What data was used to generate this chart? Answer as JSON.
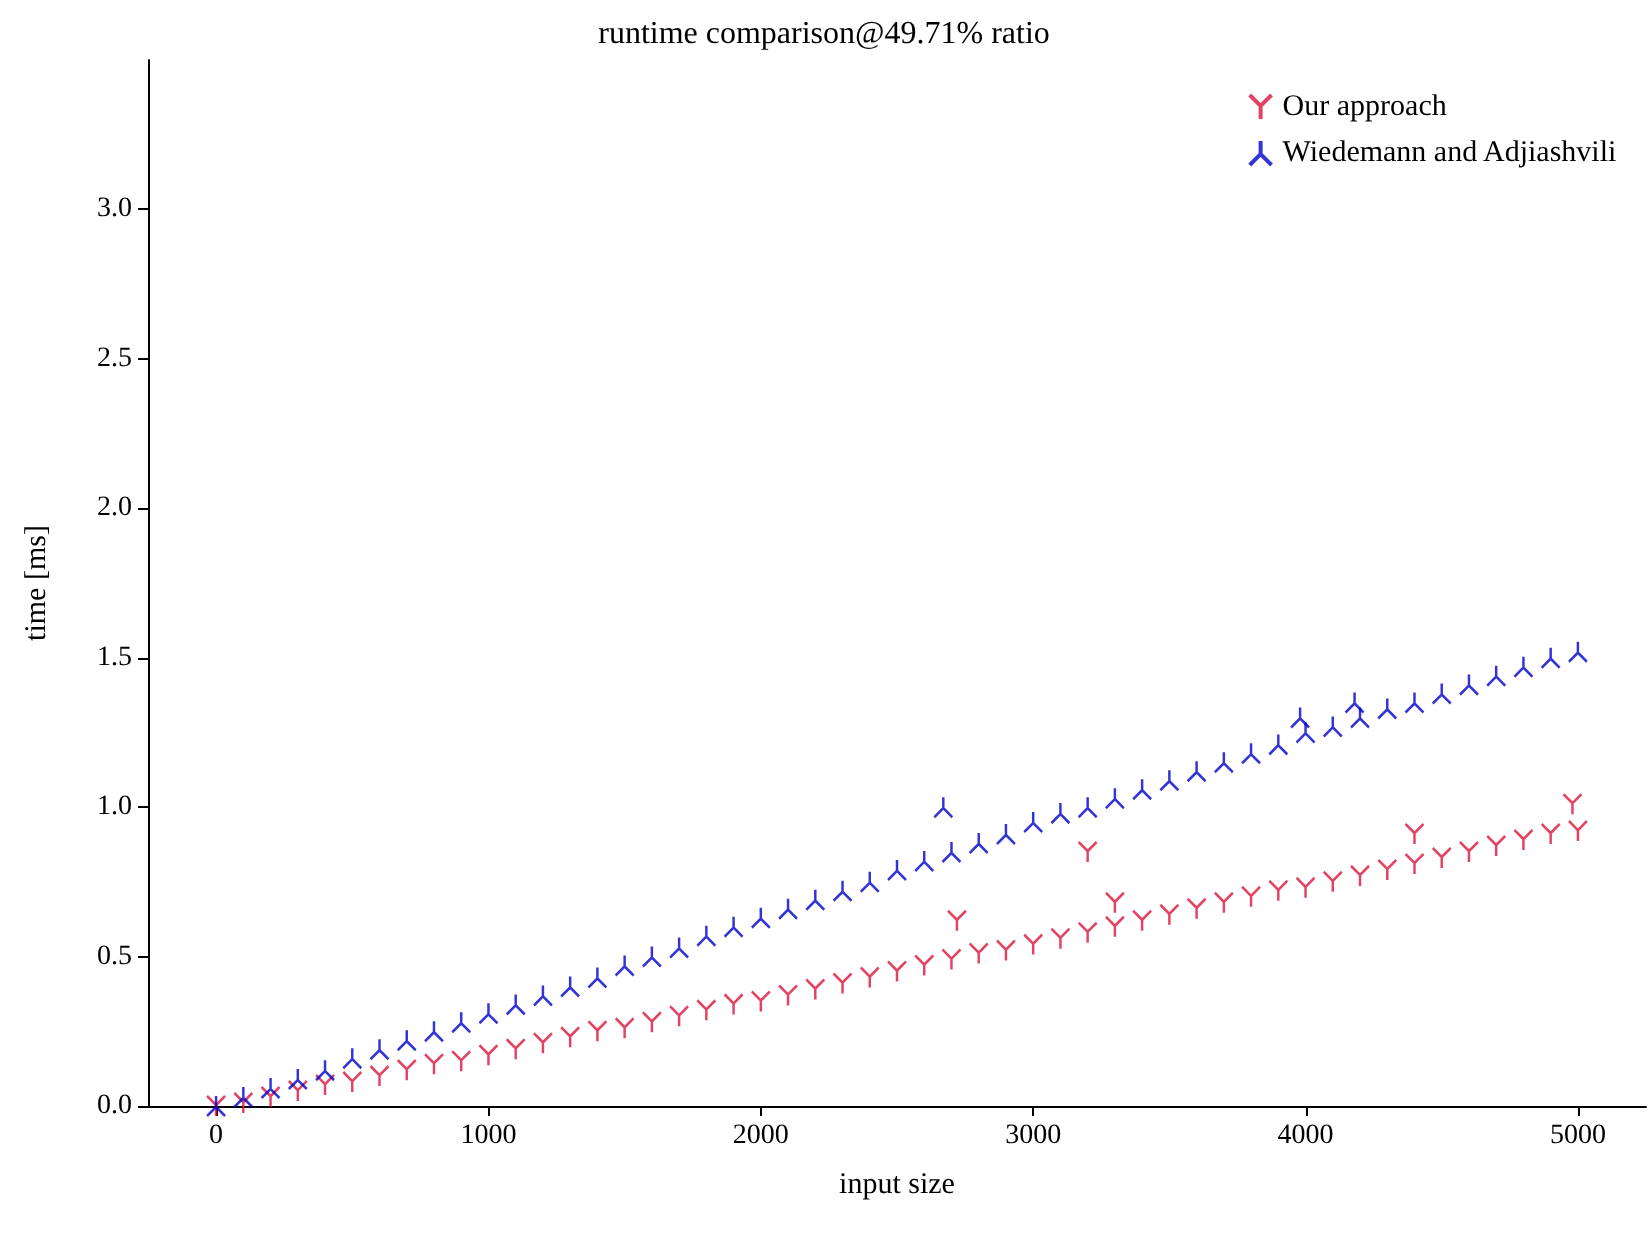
{
  "chart_data": {
    "type": "scatter",
    "title": "runtime comparison@49.71% ratio",
    "xlabel": "input size",
    "ylabel": "time [ms]",
    "xlim": [
      -250,
      5250
    ],
    "xticks": [
      0,
      1000,
      2000,
      3000,
      4000,
      5000
    ],
    "ylim": [
      0,
      3.5
    ],
    "yticks": [
      {
        "value": 0,
        "label": "0.0"
      },
      0.5,
      {
        "value": 1,
        "label": "1.0"
      },
      1.5,
      {
        "value": 2,
        "label": "2.0"
      },
      2.5,
      {
        "value": 3,
        "label": "3.0"
      }
    ],
    "grid": false,
    "legend": "top right",
    "series": [
      {
        "name": "Our approach",
        "color": "#dc143c",
        "x": [
          0,
          100,
          200,
          300,
          400,
          500,
          600,
          700,
          800,
          900,
          1000,
          1100,
          1200,
          1300,
          1400,
          1500,
          1600,
          1700,
          1800,
          1900,
          2000,
          2100,
          2200,
          2300,
          2400,
          2500,
          2600,
          2700,
          2800,
          2900,
          3000,
          3100,
          3200,
          3300,
          3400,
          3500,
          3600,
          3700,
          3800,
          3900,
          4000,
          4100,
          4200,
          4300,
          4400,
          4500,
          4600,
          4700,
          4800,
          4900,
          5000,
          2720,
          3200,
          3300,
          4400,
          4980
        ],
        "values": [
          0,
          0.01,
          0.03,
          0.05,
          0.07,
          0.08,
          0.1,
          0.12,
          0.14,
          0.15,
          0.17,
          0.19,
          0.21,
          0.23,
          0.25,
          0.26,
          0.28,
          0.3,
          0.32,
          0.34,
          0.35,
          0.37,
          0.39,
          0.41,
          0.43,
          0.45,
          0.47,
          0.49,
          0.51,
          0.52,
          0.54,
          0.56,
          0.58,
          0.6,
          0.62,
          0.64,
          0.66,
          0.68,
          0.7,
          0.72,
          0.73,
          0.75,
          0.77,
          0.79,
          0.81,
          0.83,
          0.85,
          0.87,
          0.89,
          0.91,
          0.92,
          0.62,
          0.85,
          0.68,
          0.91,
          1.01
        ]
      },
      {
        "name": "Wiedemann and Adjiashvili",
        "color": "#0000cd",
        "x": [
          0,
          100,
          200,
          300,
          400,
          500,
          600,
          700,
          800,
          900,
          1000,
          1100,
          1200,
          1300,
          1400,
          1500,
          1600,
          1700,
          1800,
          1900,
          2000,
          2100,
          2200,
          2300,
          2400,
          2500,
          2600,
          2700,
          2800,
          2900,
          3000,
          3100,
          3200,
          3300,
          3400,
          3500,
          3600,
          3700,
          3800,
          3900,
          4000,
          4100,
          4200,
          4300,
          4400,
          4500,
          4600,
          4700,
          4800,
          4900,
          5000,
          2670,
          3980,
          4180
        ],
        "values": [
          0,
          0.03,
          0.06,
          0.09,
          0.12,
          0.16,
          0.19,
          0.22,
          0.25,
          0.28,
          0.31,
          0.34,
          0.37,
          0.4,
          0.43,
          0.47,
          0.5,
          0.53,
          0.57,
          0.6,
          0.63,
          0.66,
          0.69,
          0.72,
          0.75,
          0.79,
          0.82,
          0.85,
          0.88,
          0.91,
          0.95,
          0.98,
          1.0,
          1.03,
          1.06,
          1.09,
          1.12,
          1.15,
          1.18,
          1.21,
          1.25,
          1.27,
          1.3,
          1.33,
          1.35,
          1.38,
          1.41,
          1.44,
          1.47,
          1.5,
          1.52,
          1.0,
          1.3,
          1.35
        ]
      }
    ]
  }
}
